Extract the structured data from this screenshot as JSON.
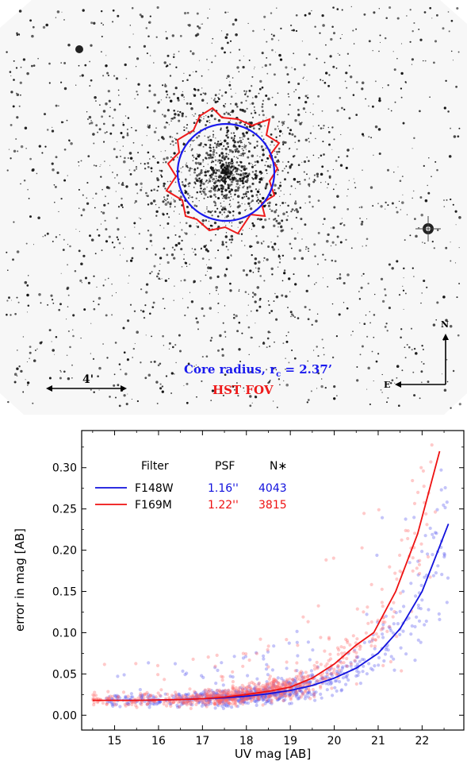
{
  "image_panel": {
    "core_label": "Core radius, r",
    "core_sub": "c",
    "core_value": " = 2.37’",
    "hst_label": "HST FOV",
    "scale_label": "4'",
    "compass_n": "N",
    "compass_e": "E",
    "core_color": "#1a1aee",
    "hst_color": "#ee1a1a"
  },
  "chart_data": {
    "type": "scatter",
    "xlabel": "UV mag [AB]",
    "ylabel": "error in mag [AB]",
    "xlim": [
      14.25,
      22.95
    ],
    "ylim": [
      -0.018,
      0.345
    ],
    "xticks": [
      15,
      16,
      17,
      18,
      19,
      20,
      21,
      22
    ],
    "yticks": [
      0.0,
      0.05,
      0.1,
      0.15,
      0.2,
      0.25,
      0.3
    ],
    "legend": {
      "placement": "top-left",
      "headers": [
        "Filter",
        "PSF",
        "N∗"
      ]
    },
    "series": [
      {
        "name": "F148W",
        "psf": "1.16''",
        "n": "4043",
        "color": "#1111dd",
        "point_color": "#5555ee",
        "curve_x": [
          14.8,
          15.5,
          16.5,
          17.0,
          17.5,
          18.0,
          18.5,
          19.0,
          19.5,
          20.0,
          20.5,
          21.0,
          21.5,
          22.0,
          22.6
        ],
        "curve_y": [
          0.018,
          0.018,
          0.019,
          0.02,
          0.021,
          0.023,
          0.026,
          0.03,
          0.036,
          0.045,
          0.057,
          0.075,
          0.105,
          0.15,
          0.232
        ]
      },
      {
        "name": "F169M",
        "psf": "1.22''",
        "n": "3815",
        "color": "#ee1111",
        "point_color": "#ff6666",
        "curve_x": [
          14.5,
          15.5,
          16.5,
          17.0,
          17.5,
          18.0,
          18.5,
          19.0,
          19.5,
          20.0,
          20.5,
          20.9,
          21.4,
          21.9,
          22.4
        ],
        "curve_y": [
          0.018,
          0.018,
          0.019,
          0.02,
          0.022,
          0.025,
          0.029,
          0.034,
          0.045,
          0.062,
          0.085,
          0.1,
          0.15,
          0.22,
          0.32
        ]
      }
    ]
  }
}
